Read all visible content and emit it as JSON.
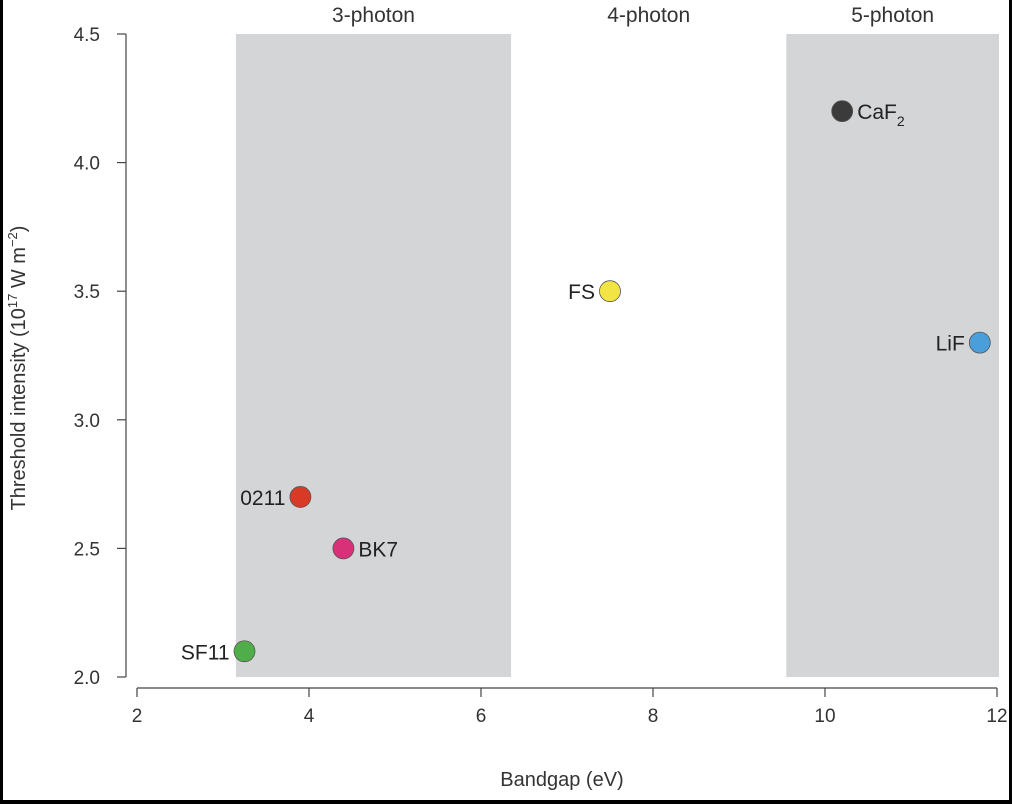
{
  "chart_data": {
    "type": "scatter",
    "title": "",
    "xlabel": "Bandgap (eV)",
    "ylabel": "Threshold intensity (10",
    "ylabel_sup1": "17",
    "ylabel_mid": " W m",
    "ylabel_sup2": "−2",
    "ylabel_end": ")",
    "xlim": [
      2,
      12
    ],
    "ylim": [
      2.0,
      4.5
    ],
    "xticks": [
      2,
      4,
      6,
      8,
      10,
      12
    ],
    "yticks": [
      2.0,
      2.5,
      3.0,
      3.5,
      4.0,
      4.5
    ],
    "ytick_labels": [
      "2.0",
      "2.5",
      "3.0",
      "3.5",
      "4.0",
      "4.5"
    ],
    "grid": false,
    "bands": [
      {
        "label": "3-photon",
        "x_start": 3.15,
        "x_end": 6.35,
        "shaded": true,
        "color": "#d4d5d7"
      },
      {
        "label": "4-photon",
        "x_start": 6.35,
        "x_end": 9.55,
        "shaded": false,
        "color": "#ffffff"
      },
      {
        "label": "5-photon",
        "x_start": 9.55,
        "x_end": 12.05,
        "shaded": true,
        "color": "#d4d5d7"
      }
    ],
    "points": [
      {
        "label": "SF11",
        "x": 3.25,
        "y": 2.1,
        "color": "#4fae4a",
        "label_side": "left"
      },
      {
        "label": "0211",
        "x": 3.9,
        "y": 2.7,
        "color": "#d83a26",
        "label_side": "left"
      },
      {
        "label": "BK7",
        "x": 4.4,
        "y": 2.5,
        "color": "#d8317a",
        "label_side": "right"
      },
      {
        "label": "FS",
        "x": 7.5,
        "y": 3.5,
        "color": "#f2e445",
        "label_side": "left"
      },
      {
        "label": "CaF",
        "label_sub": "2",
        "x": 10.2,
        "y": 4.2,
        "color": "#3b3b3b",
        "label_side": "right"
      },
      {
        "label": "LiF",
        "x": 11.8,
        "y": 3.3,
        "color": "#4a9fdb",
        "label_side": "left"
      }
    ]
  }
}
